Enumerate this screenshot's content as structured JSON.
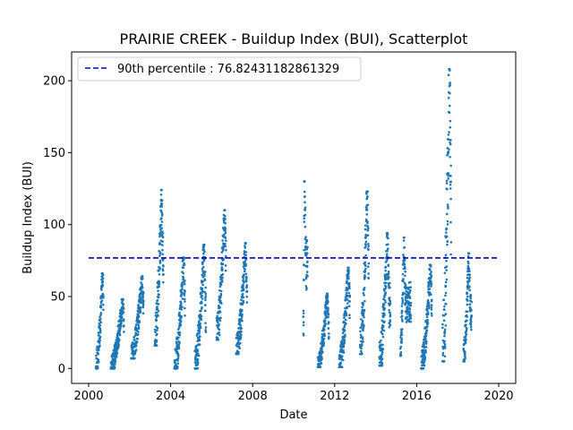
{
  "chart_data": {
    "type": "scatter",
    "title": "PRAIRIE CREEK - Buildup Index (BUI), Scatterplot",
    "xlabel": "Date",
    "ylabel": "Buildup Index (BUI)",
    "xlim": [
      1999.17,
      2020.83
    ],
    "ylim": [
      -10.4,
      220.0
    ],
    "xticks": [
      2000,
      2004,
      2008,
      2012,
      2016,
      2020
    ],
    "yticks": [
      0,
      50,
      100,
      150,
      200
    ],
    "grid": false,
    "legend_position": "top-left",
    "series": [
      {
        "kind": "scatter",
        "color": "#1f77b4",
        "seasons": [
          {
            "year": 2000,
            "start": 2000.36,
            "end": 2000.72,
            "min": 0,
            "peak": 66,
            "peak_at": 2000.68
          },
          {
            "year": 2001,
            "start": 2001.08,
            "end": 2001.72,
            "min": 0,
            "peak": 48,
            "peak_at": 2001.67
          },
          {
            "year": 2002,
            "start": 2002.08,
            "end": 2002.68,
            "min": 7,
            "peak": 64,
            "peak_at": 2002.62
          },
          {
            "year": 2003,
            "start": 2003.22,
            "end": 2003.65,
            "min": 16,
            "peak": 124,
            "peak_at": 2003.56
          },
          {
            "year": 2004,
            "start": 2004.18,
            "end": 2004.7,
            "min": 0,
            "peak": 77,
            "peak_at": 2004.64
          },
          {
            "year": 2005,
            "start": 2005.18,
            "end": 2005.72,
            "min": 0,
            "peak": 86,
            "peak_at": 2005.63
          },
          {
            "year": 2006,
            "start": 2006.24,
            "end": 2006.7,
            "min": 20,
            "peak": 110,
            "peak_at": 2006.64
          },
          {
            "year": 2007,
            "start": 2007.2,
            "end": 2007.73,
            "min": 10,
            "peak": 87,
            "peak_at": 2007.66
          },
          {
            "year": 2010,
            "start": 2010.47,
            "end": 2010.68,
            "min": 23,
            "peak": 130,
            "peak_at": 2010.52
          },
          {
            "year": 2011,
            "start": 2011.18,
            "end": 2011.72,
            "min": 1,
            "peak": 52,
            "peak_at": 2011.64
          },
          {
            "year": 2012,
            "start": 2012.22,
            "end": 2012.74,
            "min": 1,
            "peak": 70,
            "peak_at": 2012.68
          },
          {
            "year": 2013,
            "start": 2013.24,
            "end": 2013.66,
            "min": 10,
            "peak": 123,
            "peak_at": 2013.59
          },
          {
            "year": 2014,
            "start": 2014.18,
            "end": 2014.72,
            "min": 2,
            "peak": 94,
            "peak_at": 2014.58
          },
          {
            "year": 2015,
            "start": 2015.2,
            "end": 2015.72,
            "min": 9,
            "peak": 91,
            "peak_at": 2015.38
          },
          {
            "year": 2016,
            "start": 2016.22,
            "end": 2016.74,
            "min": 0,
            "peak": 72,
            "peak_at": 2016.68
          },
          {
            "year": 2017,
            "start": 2017.26,
            "end": 2017.68,
            "min": 5,
            "peak": 208,
            "peak_at": 2017.6
          },
          {
            "year": 2018,
            "start": 2018.28,
            "end": 2018.68,
            "min": 5,
            "peak": 80,
            "peak_at": 2018.54
          }
        ]
      },
      {
        "kind": "line",
        "name": "90th percentile : 76.82431182861329",
        "color": "#0000cd",
        "linestyle": "dashed",
        "y": 76.82431182861329,
        "x": [
          2000.0,
          2020.0
        ]
      }
    ]
  }
}
